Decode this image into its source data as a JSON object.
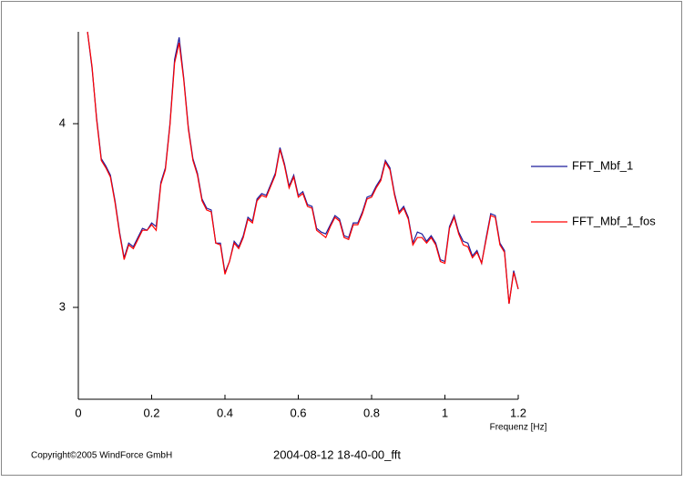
{
  "chart_data": {
    "type": "line",
    "x_label": "Frequenz [Hz]",
    "footer_left": "Copyright©2005 WindForce GmbH",
    "footer_center": "2004-08-12 18-40-00_fft",
    "x": [
      0.025,
      0.0375,
      0.05,
      0.0625,
      0.075,
      0.0875,
      0.1,
      0.1125,
      0.125,
      0.1375,
      0.15,
      0.1625,
      0.175,
      0.1875,
      0.2,
      0.2125,
      0.225,
      0.2375,
      0.25,
      0.2625,
      0.275,
      0.2875,
      0.3,
      0.3125,
      0.325,
      0.3375,
      0.35,
      0.3625,
      0.375,
      0.3875,
      0.4,
      0.4125,
      0.425,
      0.4375,
      0.45,
      0.4625,
      0.475,
      0.4875,
      0.5,
      0.5125,
      0.525,
      0.5375,
      0.55,
      0.5625,
      0.575,
      0.5875,
      0.6,
      0.6125,
      0.625,
      0.6375,
      0.65,
      0.6625,
      0.675,
      0.6875,
      0.7,
      0.7125,
      0.725,
      0.7375,
      0.75,
      0.7625,
      0.775,
      0.7875,
      0.8,
      0.8125,
      0.825,
      0.8375,
      0.85,
      0.8625,
      0.875,
      0.8875,
      0.9,
      0.9125,
      0.925,
      0.9375,
      0.95,
      0.9625,
      0.975,
      0.9875,
      1.0,
      1.0125,
      1.025,
      1.0375,
      1.05,
      1.0625,
      1.075,
      1.0875,
      1.1,
      1.1125,
      1.125,
      1.1375,
      1.15,
      1.1625,
      1.175,
      1.1875,
      1.2
    ],
    "series": [
      {
        "name": "FFT_Mbf_1",
        "color": "#1c1c9c",
        "values": [
          4.5,
          4.3,
          4.03,
          3.81,
          3.77,
          3.72,
          3.58,
          3.41,
          3.27,
          3.35,
          3.33,
          3.38,
          3.43,
          3.42,
          3.46,
          3.44,
          3.68,
          3.76,
          4.0,
          4.35,
          4.47,
          4.25,
          3.98,
          3.81,
          3.73,
          3.59,
          3.54,
          3.53,
          3.35,
          3.35,
          3.19,
          3.25,
          3.36,
          3.33,
          3.39,
          3.49,
          3.47,
          3.59,
          3.62,
          3.61,
          3.67,
          3.73,
          3.87,
          3.78,
          3.66,
          3.72,
          3.61,
          3.63,
          3.56,
          3.55,
          3.43,
          3.41,
          3.4,
          3.45,
          3.5,
          3.48,
          3.39,
          3.38,
          3.46,
          3.46,
          3.52,
          3.6,
          3.61,
          3.66,
          3.7,
          3.8,
          3.76,
          3.62,
          3.52,
          3.55,
          3.49,
          3.35,
          3.41,
          3.4,
          3.36,
          3.39,
          3.35,
          3.26,
          3.25,
          3.44,
          3.5,
          3.41,
          3.36,
          3.35,
          3.28,
          3.31,
          3.24,
          3.38,
          3.51,
          3.5,
          3.35,
          3.31,
          3.02,
          3.2,
          3.1
        ]
      },
      {
        "name": "FFT_Mbf_1_fos",
        "color": "#ff0000",
        "values": [
          4.5,
          4.31,
          4.02,
          3.8,
          3.76,
          3.71,
          3.57,
          3.4,
          3.26,
          3.34,
          3.32,
          3.37,
          3.42,
          3.42,
          3.45,
          3.42,
          3.67,
          3.75,
          3.99,
          4.33,
          4.44,
          4.24,
          3.97,
          3.8,
          3.72,
          3.58,
          3.53,
          3.52,
          3.35,
          3.34,
          3.18,
          3.25,
          3.35,
          3.32,
          3.38,
          3.48,
          3.46,
          3.58,
          3.61,
          3.6,
          3.66,
          3.72,
          3.86,
          3.77,
          3.65,
          3.71,
          3.6,
          3.62,
          3.55,
          3.54,
          3.42,
          3.4,
          3.38,
          3.44,
          3.49,
          3.47,
          3.38,
          3.37,
          3.45,
          3.45,
          3.51,
          3.59,
          3.6,
          3.65,
          3.69,
          3.79,
          3.75,
          3.61,
          3.51,
          3.54,
          3.48,
          3.34,
          3.38,
          3.38,
          3.35,
          3.38,
          3.34,
          3.25,
          3.24,
          3.43,
          3.49,
          3.4,
          3.34,
          3.33,
          3.27,
          3.3,
          3.24,
          3.37,
          3.5,
          3.49,
          3.34,
          3.3,
          3.02,
          3.19,
          3.1
        ]
      }
    ],
    "xlim": [
      0,
      1.2
    ],
    "xticks": [
      0,
      0.2,
      0.4,
      0.6,
      0.8,
      1,
      1.2
    ],
    "ylim": [
      2.5,
      4.5
    ],
    "yticks": [
      3,
      4
    ],
    "grid": false,
    "legend": "right"
  }
}
